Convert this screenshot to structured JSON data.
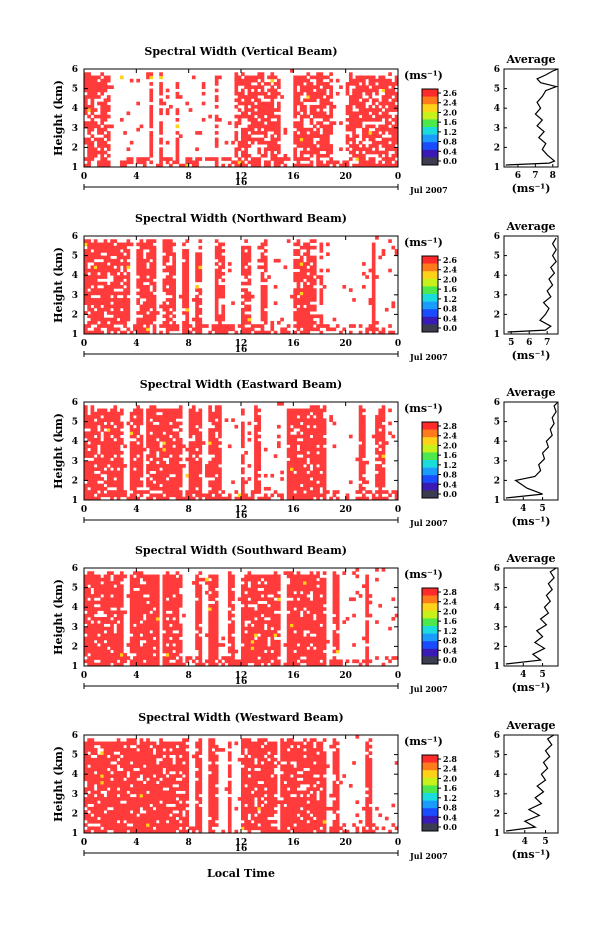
{
  "chart_data": {
    "type": "heatmap",
    "x_label": "Local Time",
    "x_ticks": [
      "0",
      "4",
      "8",
      "12",
      "16",
      "20",
      "0"
    ],
    "x_date_label": "16",
    "date_label": "Jul 2007",
    "y_label": "Height (km)",
    "y_ticks": [
      "1",
      "2",
      "3",
      "4",
      "5",
      "6"
    ],
    "ylim": [
      1,
      6
    ],
    "xlim": [
      0,
      24
    ],
    "data_color": "#ff3b3b",
    "colorbar_unit": "(ms⁻¹)",
    "average_title": "Average",
    "average_unit": "(ms⁻¹)",
    "panels": [
      {
        "title": "Spectral Width (Vertical Beam)",
        "colorbar_ticks": [
          "2.6",
          "2.4",
          "2.0",
          "1.6",
          "1.2",
          "0.8",
          "0.4",
          "0.0"
        ],
        "avg_ticks": [
          "6",
          "7",
          "8"
        ],
        "avg_xlim": [
          5.2,
          8.3
        ],
        "avg_profile": [
          [
            5.3,
            1.1
          ],
          [
            7.8,
            1.2
          ],
          [
            8.1,
            1.3
          ],
          [
            7.7,
            1.6
          ],
          [
            7.4,
            1.9
          ],
          [
            7.6,
            2.2
          ],
          [
            7.2,
            2.5
          ],
          [
            7.5,
            2.8
          ],
          [
            7.1,
            3.1
          ],
          [
            7.4,
            3.4
          ],
          [
            7.0,
            3.7
          ],
          [
            7.3,
            4.0
          ],
          [
            7.1,
            4.3
          ],
          [
            7.4,
            4.6
          ],
          [
            7.6,
            4.9
          ],
          [
            8.2,
            5.1
          ],
          [
            7.3,
            5.3
          ],
          [
            7.1,
            5.5
          ],
          [
            7.6,
            5.7
          ],
          [
            8.0,
            5.9
          ],
          [
            8.3,
            6.0
          ]
        ],
        "active_columns": [
          [
            0,
            2
          ],
          [
            5,
            5.3
          ],
          [
            5.8,
            6
          ],
          [
            7,
            7.2
          ],
          [
            10,
            10.2
          ],
          [
            11.5,
            15
          ],
          [
            16,
            19
          ],
          [
            20,
            24
          ]
        ],
        "fill_rate": 0.7
      },
      {
        "title": "Spectral Width (Northward Beam)",
        "colorbar_ticks": [
          "2.6",
          "2.4",
          "2.0",
          "1.6",
          "1.2",
          "0.8",
          "0.4",
          "0.0"
        ],
        "avg_ticks": [
          "5",
          "6",
          "7"
        ],
        "avg_xlim": [
          4.6,
          7.6
        ],
        "avg_profile": [
          [
            4.8,
            1.1
          ],
          [
            6.9,
            1.2
          ],
          [
            7.2,
            1.4
          ],
          [
            6.6,
            1.7
          ],
          [
            6.9,
            2.0
          ],
          [
            7.1,
            2.3
          ],
          [
            6.8,
            2.6
          ],
          [
            7.2,
            2.9
          ],
          [
            7.0,
            3.2
          ],
          [
            7.3,
            3.5
          ],
          [
            7.1,
            3.8
          ],
          [
            7.4,
            4.1
          ],
          [
            7.2,
            4.4
          ],
          [
            7.5,
            4.7
          ],
          [
            7.3,
            5.0
          ],
          [
            7.5,
            5.3
          ],
          [
            7.3,
            5.6
          ],
          [
            7.5,
            5.9
          ]
        ],
        "active_columns": [
          [
            0,
            3.5
          ],
          [
            4,
            5.5
          ],
          [
            6,
            7
          ],
          [
            7.5,
            8
          ],
          [
            8.5,
            9
          ],
          [
            10,
            10.8
          ],
          [
            12,
            12.7
          ],
          [
            13.5,
            14
          ],
          [
            16,
            17.8
          ],
          [
            17.9,
            18.3
          ],
          [
            22,
            22.2
          ]
        ],
        "fill_rate": 0.8
      },
      {
        "title": "Spectral Width (Eastward Beam)",
        "colorbar_ticks": [
          "2.8",
          "2.4",
          "2.0",
          "1.6",
          "1.2",
          "0.8",
          "0.4",
          "0.0"
        ],
        "avg_ticks": [
          "4",
          "5"
        ],
        "avg_xlim": [
          3.0,
          5.8
        ],
        "avg_profile": [
          [
            3.1,
            1.1
          ],
          [
            5.0,
            1.3
          ],
          [
            4.2,
            1.6
          ],
          [
            3.6,
            2.0
          ],
          [
            4.6,
            2.2
          ],
          [
            4.9,
            2.5
          ],
          [
            4.8,
            2.8
          ],
          [
            5.1,
            3.1
          ],
          [
            5.0,
            3.4
          ],
          [
            5.3,
            3.7
          ],
          [
            5.2,
            4.0
          ],
          [
            5.5,
            4.3
          ],
          [
            5.4,
            4.6
          ],
          [
            5.6,
            4.9
          ],
          [
            5.5,
            5.2
          ],
          [
            5.7,
            5.5
          ],
          [
            5.6,
            5.8
          ],
          [
            5.8,
            6.0
          ]
        ],
        "active_columns": [
          [
            0,
            3
          ],
          [
            3.5,
            4.5
          ],
          [
            4.8,
            7.5
          ],
          [
            8,
            9
          ],
          [
            9.5,
            10.5
          ],
          [
            12,
            12.3
          ],
          [
            13,
            13.5
          ],
          [
            15.5,
            18.5
          ],
          [
            21,
            21.4
          ],
          [
            22.2,
            23
          ]
        ],
        "fill_rate": 0.82
      },
      {
        "title": "Spectral Width (Southward Beam)",
        "colorbar_ticks": [
          "2.8",
          "2.4",
          "2.0",
          "1.6",
          "1.2",
          "0.8",
          "0.4",
          "0.0"
        ],
        "avg_ticks": [
          "4",
          "5"
        ],
        "avg_xlim": [
          3.0,
          5.8
        ],
        "avg_profile": [
          [
            3.1,
            1.1
          ],
          [
            4.9,
            1.3
          ],
          [
            4.5,
            1.6
          ],
          [
            5.1,
            1.9
          ],
          [
            4.6,
            2.2
          ],
          [
            5.0,
            2.5
          ],
          [
            4.7,
            2.8
          ],
          [
            5.2,
            3.1
          ],
          [
            4.9,
            3.4
          ],
          [
            5.3,
            3.7
          ],
          [
            5.1,
            4.0
          ],
          [
            5.4,
            4.3
          ],
          [
            5.2,
            4.6
          ],
          [
            5.5,
            4.9
          ],
          [
            5.3,
            5.2
          ],
          [
            5.6,
            5.5
          ],
          [
            5.4,
            5.8
          ],
          [
            5.7,
            6.0
          ]
        ],
        "active_columns": [
          [
            0,
            3
          ],
          [
            3.5,
            5.8
          ],
          [
            6,
            7.5
          ],
          [
            8.5,
            9
          ],
          [
            9.5,
            10.3
          ],
          [
            11,
            11.4
          ],
          [
            12,
            15
          ],
          [
            15.5,
            18.5
          ],
          [
            19,
            19.6
          ],
          [
            21.5,
            21.8
          ]
        ],
        "fill_rate": 0.85
      },
      {
        "title": "Spectral Width (Westward Beam)",
        "colorbar_ticks": [
          "2.8",
          "2.4",
          "2.0",
          "1.6",
          "1.2",
          "0.8",
          "0.4",
          "0.0"
        ],
        "avg_ticks": [
          "4",
          "5"
        ],
        "avg_xlim": [
          3.0,
          5.6
        ],
        "avg_profile": [
          [
            3.1,
            1.1
          ],
          [
            4.5,
            1.3
          ],
          [
            4.0,
            1.6
          ],
          [
            4.7,
            1.9
          ],
          [
            4.2,
            2.2
          ],
          [
            4.8,
            2.5
          ],
          [
            4.5,
            2.8
          ],
          [
            4.9,
            3.1
          ],
          [
            4.6,
            3.4
          ],
          [
            5.0,
            3.7
          ],
          [
            4.8,
            4.0
          ],
          [
            5.1,
            4.3
          ],
          [
            4.9,
            4.6
          ],
          [
            5.2,
            4.9
          ],
          [
            5.0,
            5.2
          ],
          [
            5.3,
            5.5
          ],
          [
            5.1,
            5.8
          ],
          [
            5.4,
            6.0
          ]
        ],
        "active_columns": [
          [
            0,
            3.5
          ],
          [
            3.5,
            5.5
          ],
          [
            5.5,
            8
          ],
          [
            8.5,
            9
          ],
          [
            9.5,
            10.3
          ],
          [
            11,
            11.3
          ],
          [
            12,
            14.8
          ],
          [
            15,
            18.5
          ],
          [
            19,
            19.5
          ],
          [
            21.5,
            22
          ]
        ],
        "fill_rate": 0.83
      }
    ]
  }
}
